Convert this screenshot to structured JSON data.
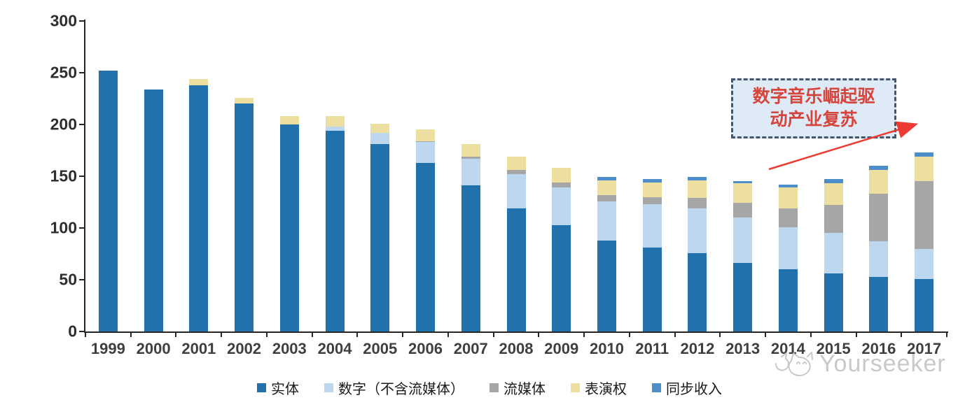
{
  "chart_data": {
    "type": "bar",
    "stacked": true,
    "title": "",
    "xlabel": "",
    "ylabel": "",
    "categories": [
      "1999",
      "2000",
      "2001",
      "2002",
      "2003",
      "2004",
      "2005",
      "2006",
      "2007",
      "2008",
      "2009",
      "2010",
      "2011",
      "2012",
      "2013",
      "2014",
      "2015",
      "2016",
      "2017"
    ],
    "series": [
      {
        "name": "实体",
        "color": "#2171ac",
        "values": [
          252,
          234,
          238,
          220,
          200,
          194,
          181,
          163,
          141,
          119,
          103,
          88,
          81,
          76,
          66,
          60,
          56,
          53,
          51
        ]
      },
      {
        "name": "数字（不含流媒体）",
        "color": "#bdd7ee",
        "values": [
          0,
          0,
          0,
          0,
          0,
          4,
          11,
          20,
          26,
          33,
          36,
          38,
          42,
          43,
          44,
          41,
          39,
          34,
          29
        ]
      },
      {
        "name": "流媒体",
        "color": "#a6a6a6",
        "values": [
          0,
          0,
          0,
          0,
          0,
          0,
          0,
          1,
          2,
          4,
          5,
          6,
          7,
          10,
          14,
          18,
          27,
          46,
          65
        ]
      },
      {
        "name": "表演权",
        "color": "#ecdf9f",
        "values": [
          0,
          0,
          6,
          6,
          8,
          10,
          9,
          11,
          12,
          13,
          14,
          14,
          14,
          17,
          19,
          20,
          21,
          23,
          24
        ]
      },
      {
        "name": "同步收入",
        "color": "#4d8dc9",
        "values": [
          0,
          0,
          0,
          0,
          0,
          0,
          0,
          0,
          0,
          0,
          0,
          3,
          3,
          3,
          2,
          3,
          4,
          4,
          4
        ]
      }
    ],
    "ylim": [
      0,
      300
    ],
    "y_ticks": [
      0,
      50,
      100,
      150,
      200,
      250,
      300
    ],
    "grid": false,
    "legend_position": "bottom"
  },
  "annotation": {
    "lines": [
      "数字音乐崛起驱",
      "动产业复苏"
    ],
    "text_color": "#d5453c",
    "box_fill": "#deeaf6",
    "box_border": "#44546a",
    "arrow_color": "#ed3b33"
  },
  "watermark": {
    "text": "Yourseeker",
    "color": "#c7c7c7",
    "logo_icon": "cat-face-logo-icon"
  },
  "axis_color": "#262626"
}
